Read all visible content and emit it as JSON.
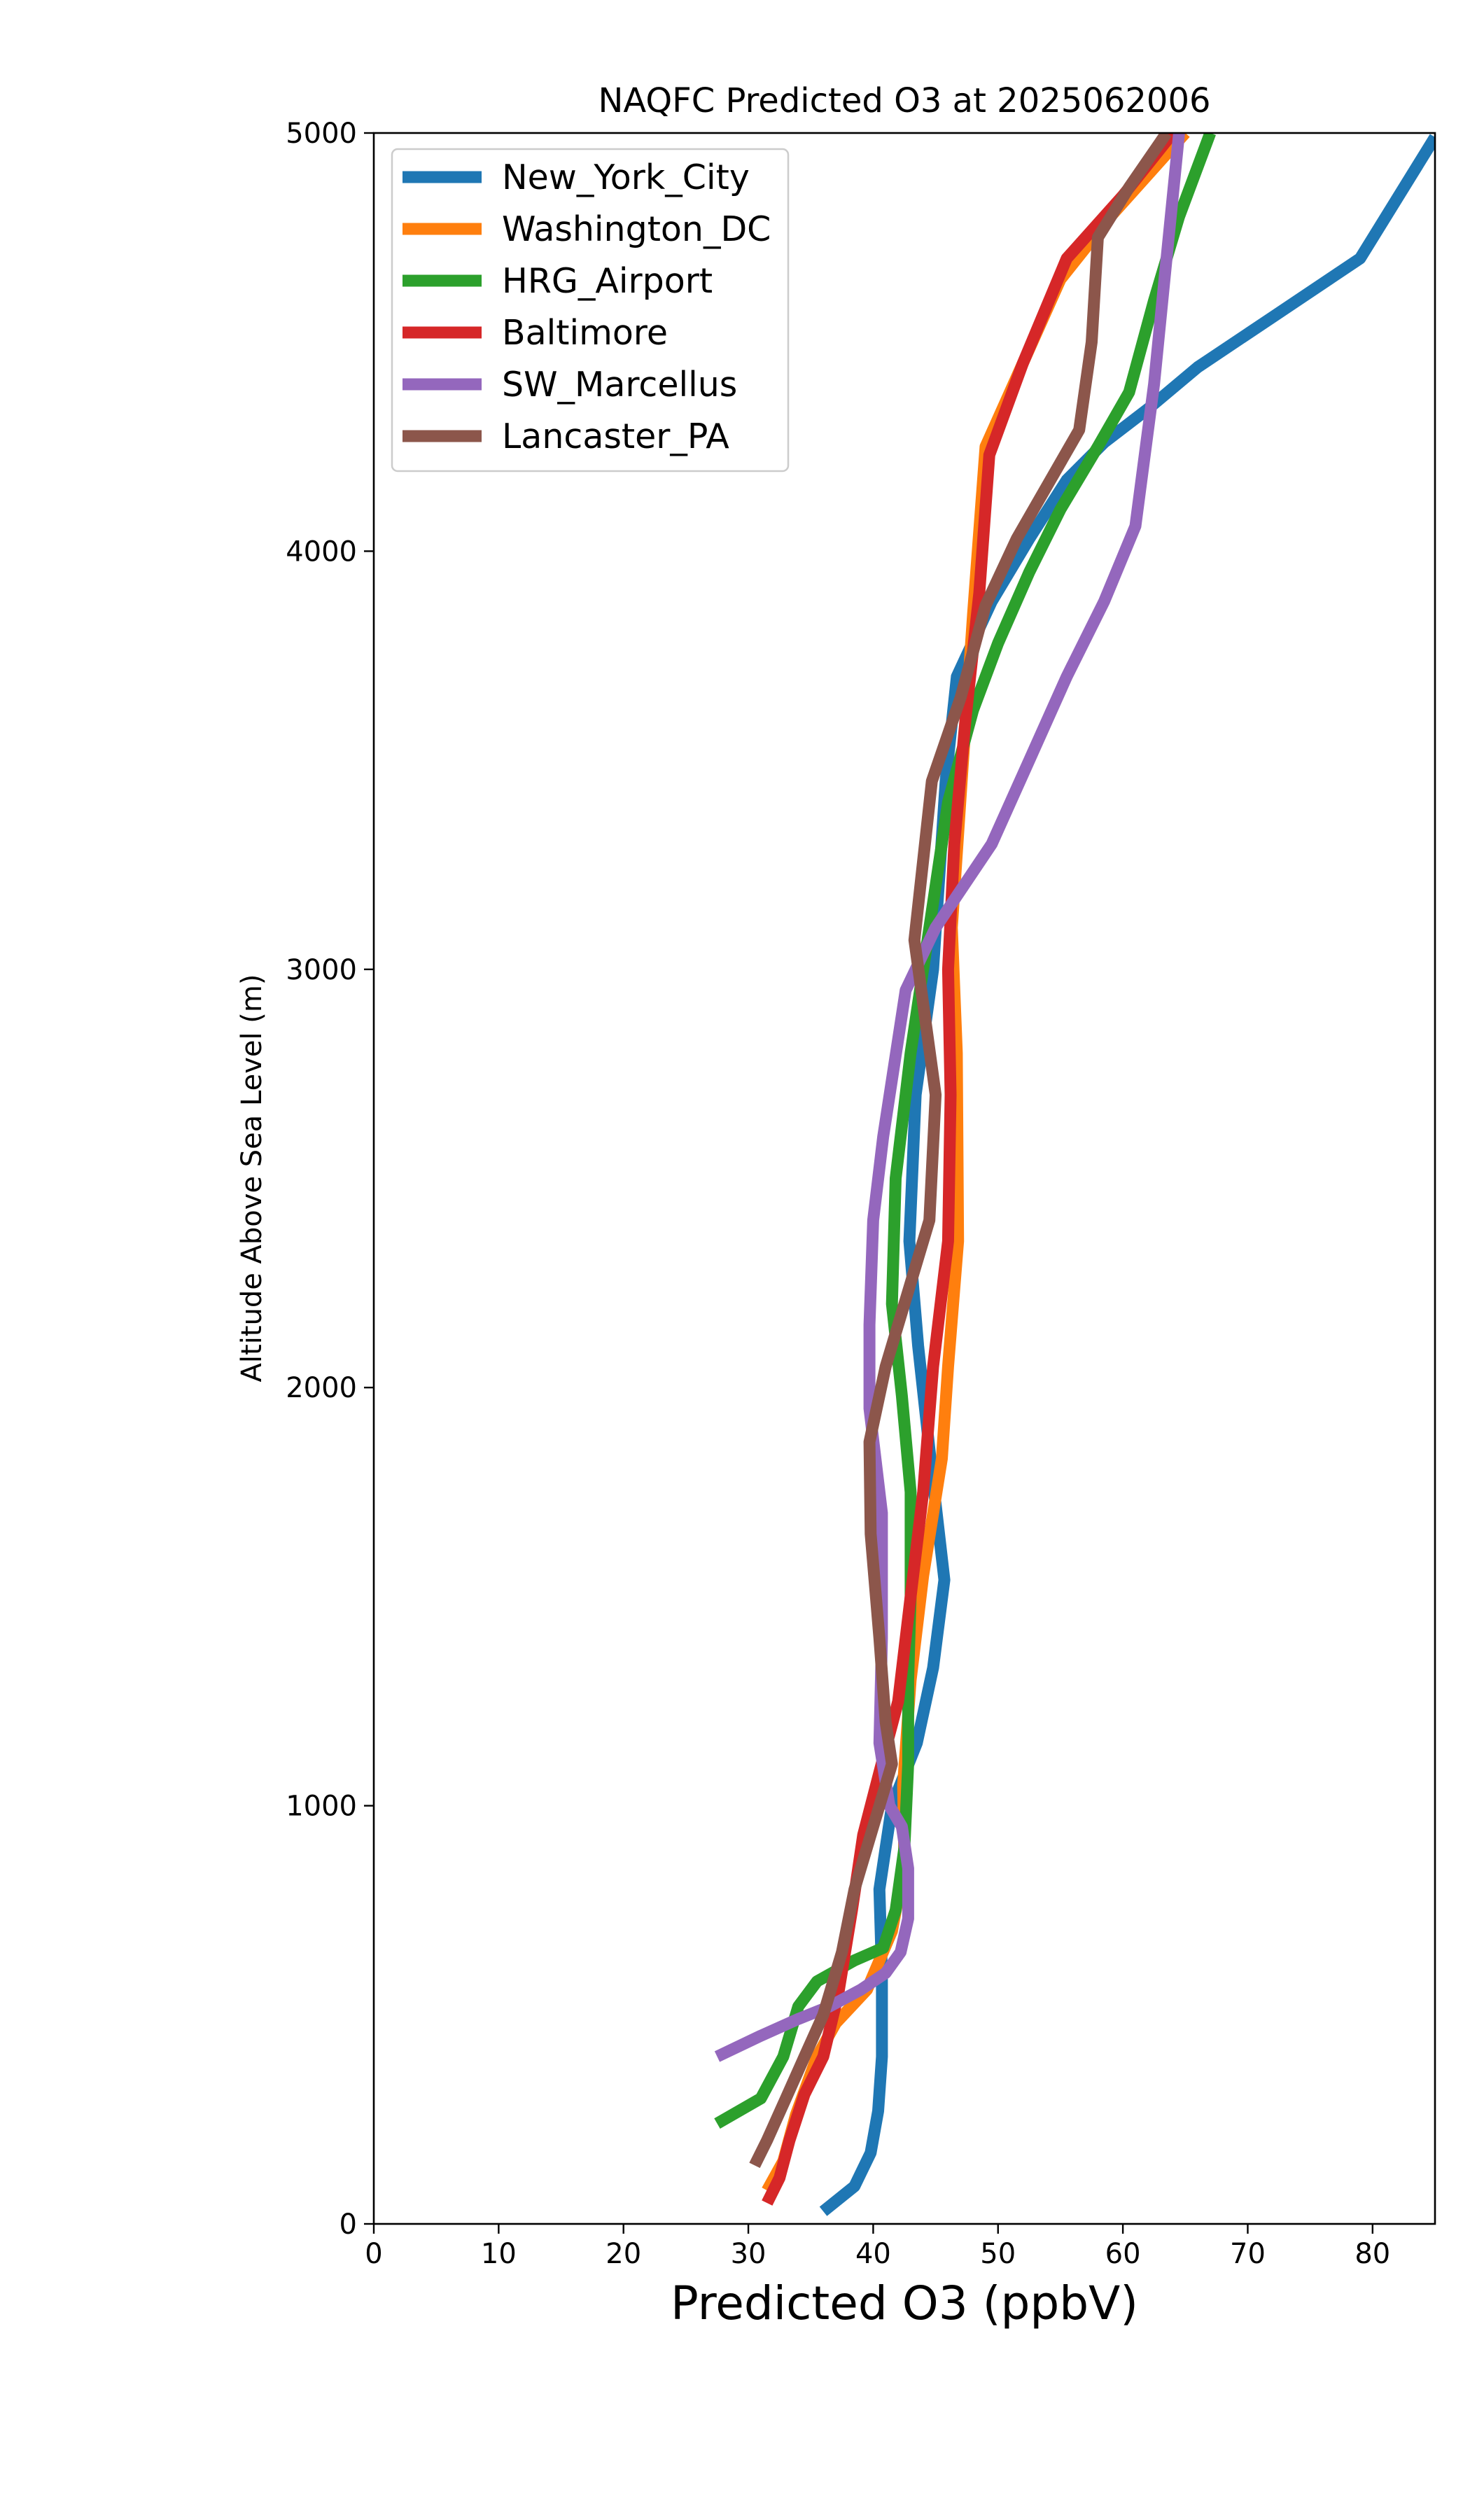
{
  "chart_data": {
    "type": "line",
    "title": "NAQFC Predicted O3 at 2025062006",
    "xlabel": "Predicted O3 (ppbV)",
    "ylabel": "Altitude Above Sea Level (m)",
    "xlim": [
      0,
      85
    ],
    "ylim": [
      0,
      5000
    ],
    "xticks": [
      "0",
      "10",
      "20",
      "30",
      "40",
      "50",
      "60",
      "70",
      "80"
    ],
    "yticks": [
      "0",
      "1000",
      "2000",
      "3000",
      "4000",
      "5000"
    ],
    "grid": false,
    "legend_position": "top-left",
    "series": [
      {
        "name": "New_York_City",
        "color": "#1f77b4",
        "points": [
          [
            36,
            30
          ],
          [
            38.5,
            90
          ],
          [
            39.8,
            170
          ],
          [
            40.4,
            270
          ],
          [
            40.7,
            400
          ],
          [
            40.7,
            600
          ],
          [
            40.5,
            800
          ],
          [
            41.5,
            1000
          ],
          [
            43.5,
            1150
          ],
          [
            44.8,
            1330
          ],
          [
            45.7,
            1540
          ],
          [
            44.7,
            1800
          ],
          [
            43.6,
            2100
          ],
          [
            42.9,
            2350
          ],
          [
            43.4,
            2700
          ],
          [
            44.8,
            3000
          ],
          [
            45.8,
            3450
          ],
          [
            46.7,
            3700
          ],
          [
            49.5,
            3880
          ],
          [
            52.5,
            4030
          ],
          [
            55.5,
            4170
          ],
          [
            58.5,
            4260
          ],
          [
            62,
            4340
          ],
          [
            66,
            4440
          ],
          [
            72,
            4560
          ],
          [
            79,
            4700
          ],
          [
            85,
            4990
          ]
        ]
      },
      {
        "name": "Washington_DC",
        "color": "#ff7f0e",
        "points": [
          [
            31.5,
            80
          ],
          [
            32.8,
            150
          ],
          [
            33.8,
            260
          ],
          [
            35.5,
            400
          ],
          [
            37,
            480
          ],
          [
            39.5,
            560
          ],
          [
            41.5,
            700
          ],
          [
            42.5,
            860
          ],
          [
            42.4,
            1050
          ],
          [
            43,
            1300
          ],
          [
            44,
            1550
          ],
          [
            45.5,
            1830
          ],
          [
            46,
            2050
          ],
          [
            46.8,
            2350
          ],
          [
            46.7,
            2800
          ],
          [
            46.3,
            3100
          ],
          [
            47.2,
            3500
          ],
          [
            48,
            3850
          ],
          [
            48.5,
            4050
          ],
          [
            49,
            4250
          ],
          [
            52,
            4450
          ],
          [
            55,
            4650
          ],
          [
            59,
            4800
          ],
          [
            65,
            5000
          ]
        ]
      },
      {
        "name": "HRG_Airport",
        "color": "#2ca02c",
        "points": [
          [
            27.5,
            240
          ],
          [
            31,
            300
          ],
          [
            32.8,
            400
          ],
          [
            34,
            520
          ],
          [
            35.5,
            580
          ],
          [
            38.5,
            630
          ],
          [
            40.8,
            660
          ],
          [
            41.8,
            750
          ],
          [
            42.5,
            900
          ],
          [
            42.8,
            1100
          ],
          [
            42.8,
            1300
          ],
          [
            43,
            1500
          ],
          [
            43,
            1750
          ],
          [
            42.3,
            1980
          ],
          [
            41.5,
            2200
          ],
          [
            41.8,
            2500
          ],
          [
            43,
            2800
          ],
          [
            44.5,
            3100
          ],
          [
            46,
            3400
          ],
          [
            48,
            3620
          ],
          [
            50,
            3780
          ],
          [
            52.5,
            3950
          ],
          [
            55,
            4100
          ],
          [
            58,
            4250
          ],
          [
            60.5,
            4380
          ],
          [
            62.5,
            4600
          ],
          [
            64.5,
            4800
          ],
          [
            67,
            5000
          ]
        ]
      },
      {
        "name": "Baltimore",
        "color": "#d62728",
        "points": [
          [
            31.5,
            50
          ],
          [
            32.5,
            110
          ],
          [
            33.3,
            200
          ],
          [
            34.5,
            310
          ],
          [
            36,
            400
          ],
          [
            37.2,
            550
          ],
          [
            38.3,
            750
          ],
          [
            39.2,
            930
          ],
          [
            40.5,
            1080
          ],
          [
            42,
            1250
          ],
          [
            43,
            1500
          ],
          [
            44,
            1750
          ],
          [
            44.8,
            2050
          ],
          [
            46,
            2350
          ],
          [
            46.2,
            2700
          ],
          [
            46,
            3000
          ],
          [
            46.5,
            3300
          ],
          [
            47.4,
            3600
          ],
          [
            48.5,
            3900
          ],
          [
            49.3,
            4230
          ],
          [
            52,
            4450
          ],
          [
            55.5,
            4700
          ],
          [
            60,
            4850
          ],
          [
            64,
            5000
          ]
        ]
      },
      {
        "name": "SW_Marcellus",
        "color": "#9467bd",
        "points": [
          [
            27.5,
            400
          ],
          [
            31,
            450
          ],
          [
            34,
            490
          ],
          [
            36.5,
            520
          ],
          [
            39,
            560
          ],
          [
            41,
            600
          ],
          [
            42.2,
            650
          ],
          [
            42.8,
            730
          ],
          [
            42.8,
            850
          ],
          [
            42.3,
            950
          ],
          [
            41.3,
            1000
          ],
          [
            40.5,
            1150
          ],
          [
            40.7,
            1400
          ],
          [
            40.7,
            1700
          ],
          [
            39.7,
            1950
          ],
          [
            39.7,
            2150
          ],
          [
            40,
            2400
          ],
          [
            40.8,
            2600
          ],
          [
            42.6,
            2950
          ],
          [
            45,
            3100
          ],
          [
            49.5,
            3300
          ],
          [
            52.5,
            3500
          ],
          [
            55.5,
            3700
          ],
          [
            58.5,
            3880
          ],
          [
            61,
            4060
          ],
          [
            62.5,
            4400
          ],
          [
            63.5,
            4700
          ],
          [
            64.5,
            5000
          ]
        ]
      },
      {
        "name": "Lancaster_PA",
        "color": "#8c564b",
        "points": [
          [
            30.5,
            140
          ],
          [
            31.5,
            200
          ],
          [
            33,
            300
          ],
          [
            34.5,
            400
          ],
          [
            36,
            500
          ],
          [
            37.5,
            650
          ],
          [
            38.5,
            800
          ],
          [
            40,
            950
          ],
          [
            41.5,
            1100
          ],
          [
            41,
            1200
          ],
          [
            40.5,
            1400
          ],
          [
            39.8,
            1650
          ],
          [
            39.7,
            1870
          ],
          [
            41,
            2050
          ],
          [
            42.5,
            2200
          ],
          [
            44.5,
            2400
          ],
          [
            45,
            2700
          ],
          [
            43.3,
            3070
          ],
          [
            44.7,
            3450
          ],
          [
            47,
            3650
          ],
          [
            49,
            3870
          ],
          [
            51.5,
            4030
          ],
          [
            54,
            4160
          ],
          [
            56.5,
            4290
          ],
          [
            57.5,
            4500
          ],
          [
            58,
            4750
          ],
          [
            60.5,
            4870
          ],
          [
            63.5,
            5000
          ]
        ]
      }
    ]
  }
}
